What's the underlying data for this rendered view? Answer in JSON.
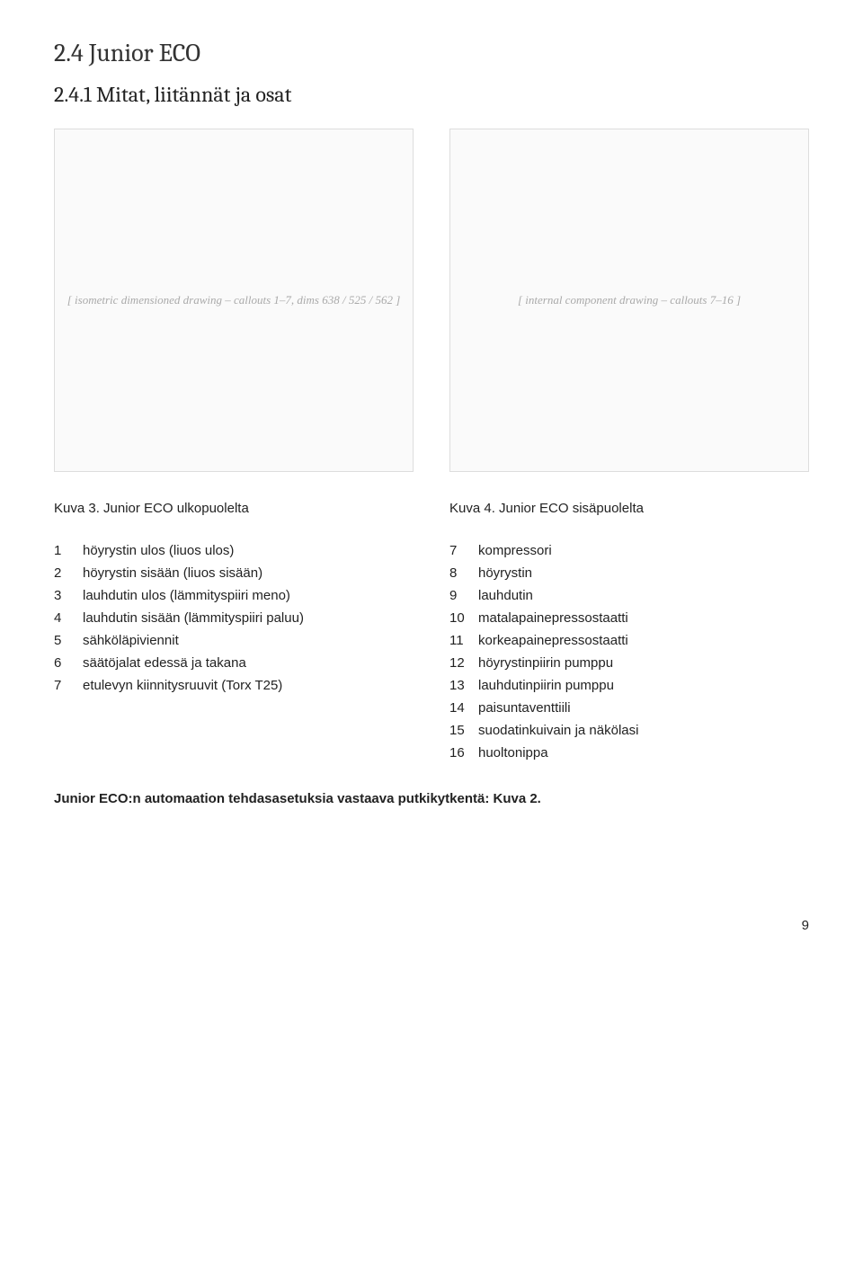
{
  "section": {
    "heading": "2.4 Junior ECO",
    "subheading": "2.4.1 Mitat, liitännät ja osat"
  },
  "figure_left_caption": "Kuva 3. Junior ECO ulkopuolelta",
  "figure_right_caption": "Kuva 4. Junior ECO sisäpuolelta",
  "figure_left_placeholder": "[ isometric dimensioned drawing – callouts 1–7, dims 638 / 525 / 562 ]",
  "figure_right_placeholder": "[ internal component drawing – callouts 7–16 ]",
  "left_list": [
    {
      "n": "1",
      "t": "höyrystin ulos (liuos ulos)"
    },
    {
      "n": "2",
      "t": "höyrystin sisään (liuos sisään)"
    },
    {
      "n": "3",
      "t": "lauhdutin ulos (lämmityspiiri meno)"
    },
    {
      "n": "4",
      "t": "lauhdutin sisään (lämmityspiiri paluu)"
    },
    {
      "n": "5",
      "t": "sähköläpiviennit"
    },
    {
      "n": "6",
      "t": "säätöjalat edessä ja takana"
    },
    {
      "n": "7",
      "t": "etulevyn kiinnitysruuvit (Torx T25)"
    }
  ],
  "right_list": [
    {
      "n": "7",
      "t": "kompressori"
    },
    {
      "n": "8",
      "t": "höyrystin"
    },
    {
      "n": "9",
      "t": "lauhdutin"
    },
    {
      "n": "10",
      "t": "matalapainepressostaatti"
    },
    {
      "n": "11",
      "t": "korkeapainepressostaatti"
    },
    {
      "n": "12",
      "t": "höyrystinpiirin pumppu"
    },
    {
      "n": "13",
      "t": "lauhdutinpiirin pumppu"
    },
    {
      "n": "14",
      "t": "paisuntaventtiili"
    },
    {
      "n": "15",
      "t": "suodatinkuivain ja näkölasi"
    },
    {
      "n": "16",
      "t": "huoltonippa"
    }
  ],
  "note_bold": "Junior ECO:n automaation tehdasasetuksia vastaava putkikytkentä: Kuva 2.",
  "page_number": "9"
}
